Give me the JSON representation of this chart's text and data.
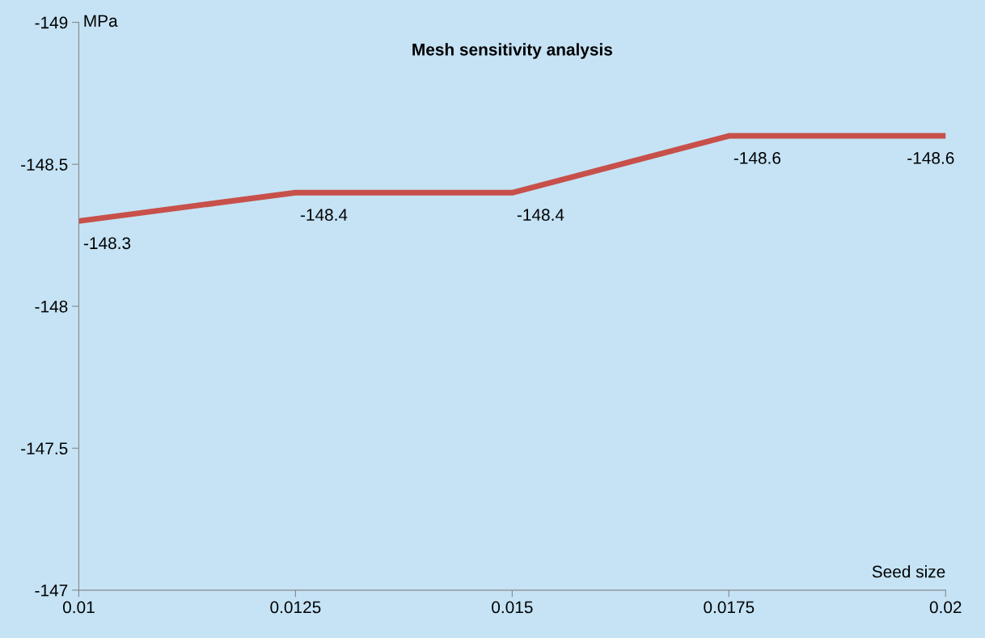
{
  "chart_data": {
    "type": "line",
    "title": "Mesh sensitivity analysis",
    "xlabel": "Seed size",
    "ylabel": "MPa",
    "x": [
      0.01,
      0.0125,
      0.015,
      0.0175,
      0.02
    ],
    "series": [
      {
        "color": "#c8504a",
        "values": [
          -148.3,
          -148.4,
          -148.4,
          -148.6,
          -148.6
        ]
      }
    ],
    "xlim": [
      0.01,
      0.02
    ],
    "xticks": [
      0.01,
      0.0125,
      0.015,
      0.0175,
      0.02
    ],
    "ylim": [
      -147,
      -149
    ],
    "yticks": [
      -149,
      -148.5,
      -148,
      -147.5,
      -147
    ],
    "data_labels": true,
    "grid": false,
    "marker": "none",
    "line_style": "solid"
  }
}
